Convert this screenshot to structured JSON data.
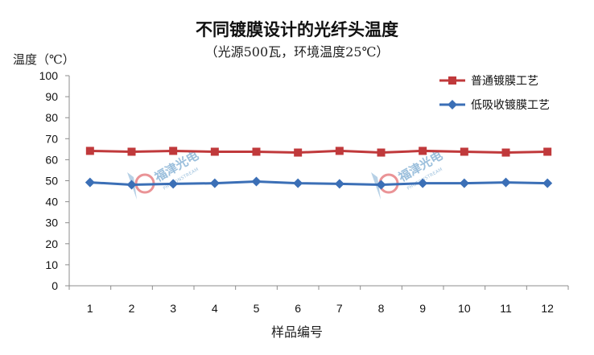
{
  "chart_data": {
    "type": "line",
    "title": "不同镀膜设计的光纤头温度",
    "subtitle": "（光源500瓦，环境温度25℃）",
    "ylabel": "温度（℃）",
    "xlabel": "样品编号",
    "categories": [
      "1",
      "2",
      "3",
      "4",
      "5",
      "6",
      "7",
      "8",
      "9",
      "10",
      "11",
      "12"
    ],
    "ylim": [
      0,
      100
    ],
    "yticks": [
      "0",
      "10",
      "20",
      "30",
      "40",
      "50",
      "60",
      "70",
      "80",
      "90",
      "100"
    ],
    "grid": false,
    "legend_position": "top-right",
    "series": [
      {
        "name": "普通镀膜工艺",
        "color": "#c0393b",
        "marker": "square",
        "values": [
          64.2,
          63.8,
          64.2,
          63.8,
          63.8,
          63.4,
          64.2,
          63.4,
          64.2,
          63.8,
          63.4,
          63.8
        ]
      },
      {
        "name": "低吸收镀膜工艺",
        "color": "#3b6fb6",
        "marker": "diamond",
        "values": [
          49.2,
          48.1,
          48.5,
          48.8,
          49.6,
          48.8,
          48.5,
          48.1,
          48.8,
          48.8,
          49.2,
          48.8
        ]
      }
    ]
  },
  "watermark": {
    "text": "福津光电",
    "subtext": "PHOTONSTREAM",
    "color": "#4a8cc0"
  }
}
